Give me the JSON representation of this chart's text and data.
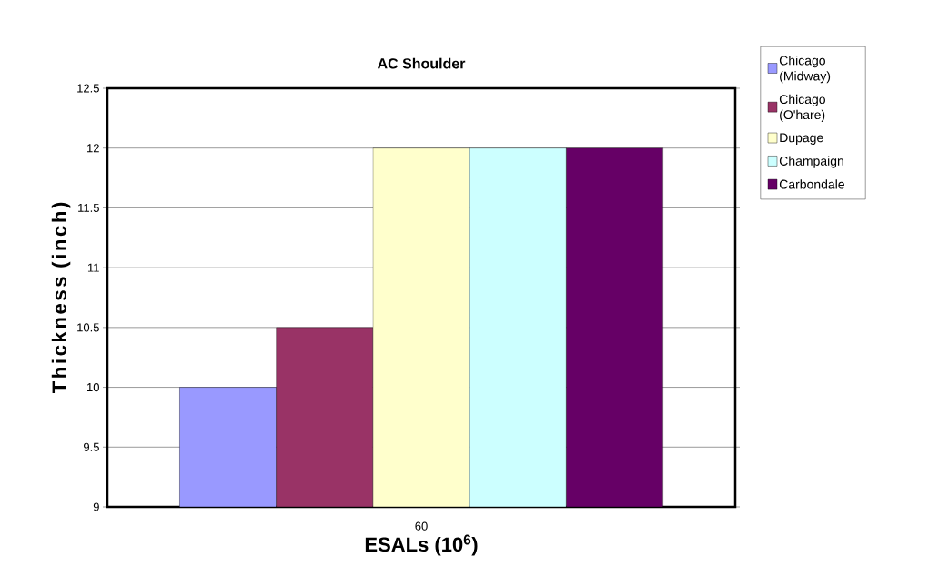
{
  "chart_data": {
    "type": "bar",
    "title": "AC Shoulder",
    "xlabel": "ESALs (10$^{6}$)",
    "ylabel": "Thickness (inch)",
    "categories": [
      "60"
    ],
    "series": [
      {
        "name": "Chicago (Midway)",
        "color": "#9999ff",
        "values": [
          10
        ]
      },
      {
        "name": "Chicago (O'hare)",
        "color": "#993366",
        "values": [
          10.5
        ]
      },
      {
        "name": "Dupage",
        "color": "#ffffcc",
        "values": [
          12
        ]
      },
      {
        "name": "Champaign",
        "color": "#ccffff",
        "values": [
          12
        ]
      },
      {
        "name": "Carbondale",
        "color": "#660066",
        "values": [
          12
        ]
      }
    ],
    "ylim": [
      9,
      12.5
    ],
    "yticks": [
      9,
      9.5,
      10,
      10.5,
      11,
      11.5,
      12,
      12.5
    ],
    "grid": "y",
    "legend": "right"
  }
}
